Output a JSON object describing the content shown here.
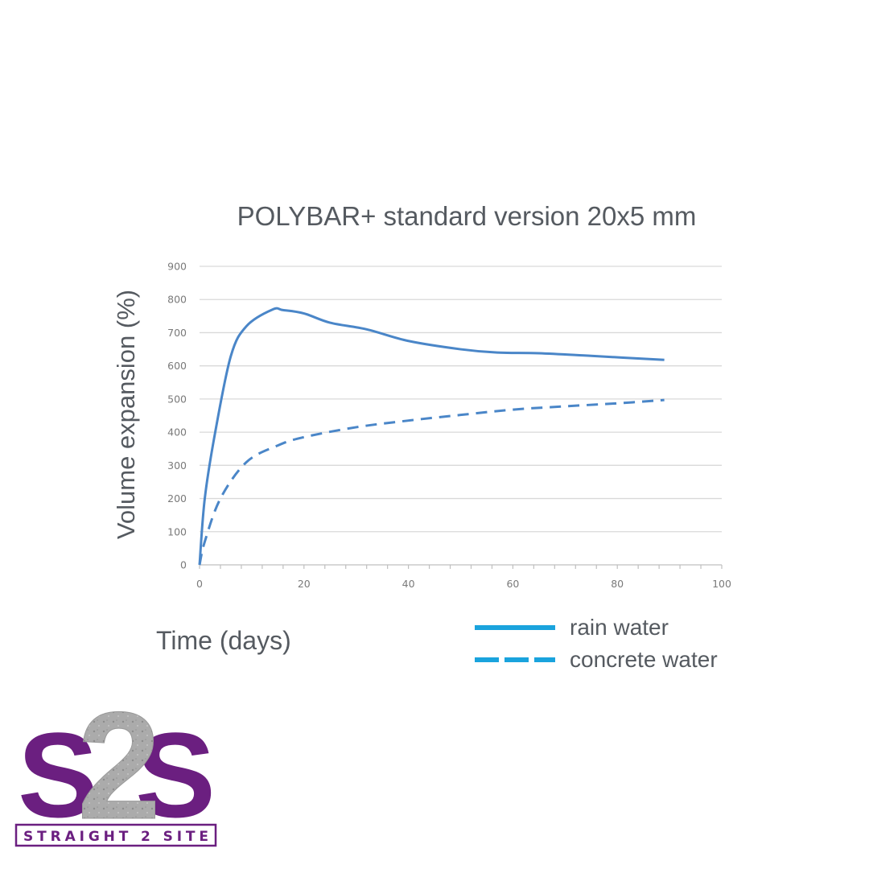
{
  "page": {
    "title": "POLYBAR+ standard version 20x5 mm",
    "ylabel": "Volume expansion (%)",
    "xlabel": "Time (days)",
    "legend": [
      {
        "label": "rain water",
        "style": "solid",
        "color": "#1aa3dd"
      },
      {
        "label": "concrete water",
        "style": "dashed",
        "color": "#1aa3dd"
      }
    ],
    "logo": {
      "big_text": "S2S",
      "sub_text": "STRAIGHT 2 SITE",
      "brand_color": "#6b1f80",
      "accent_color": "#a9a9a9"
    }
  },
  "chart_data": {
    "type": "line",
    "title": "POLYBAR+ standard version 20x5 mm",
    "xlabel": "Time (days)",
    "ylabel": "Volume expansion (%)",
    "xlim": [
      0,
      100
    ],
    "ylim": [
      0,
      900
    ],
    "xticks": [
      0,
      20,
      40,
      60,
      80,
      100
    ],
    "yticks": [
      0,
      100,
      200,
      300,
      400,
      500,
      600,
      700,
      800,
      900
    ],
    "grid": "horizontal",
    "legend_position": "bottom-right",
    "line_color": "#4a86c8",
    "series": [
      {
        "name": "rain water",
        "style": "solid",
        "x": [
          0,
          1,
          3,
          6,
          9,
          14,
          16,
          20,
          25,
          32,
          40,
          50,
          57,
          65,
          75,
          89
        ],
        "y": [
          0,
          200,
          400,
          630,
          720,
          770,
          768,
          758,
          730,
          710,
          675,
          650,
          640,
          638,
          630,
          618
        ]
      },
      {
        "name": "concrete water",
        "style": "dashed",
        "x": [
          0,
          1,
          4,
          9,
          15,
          20,
          30,
          40,
          50,
          60,
          70,
          80,
          89
        ],
        "y": [
          0,
          70,
          200,
          310,
          360,
          385,
          415,
          435,
          452,
          468,
          478,
          487,
          497
        ]
      }
    ]
  }
}
